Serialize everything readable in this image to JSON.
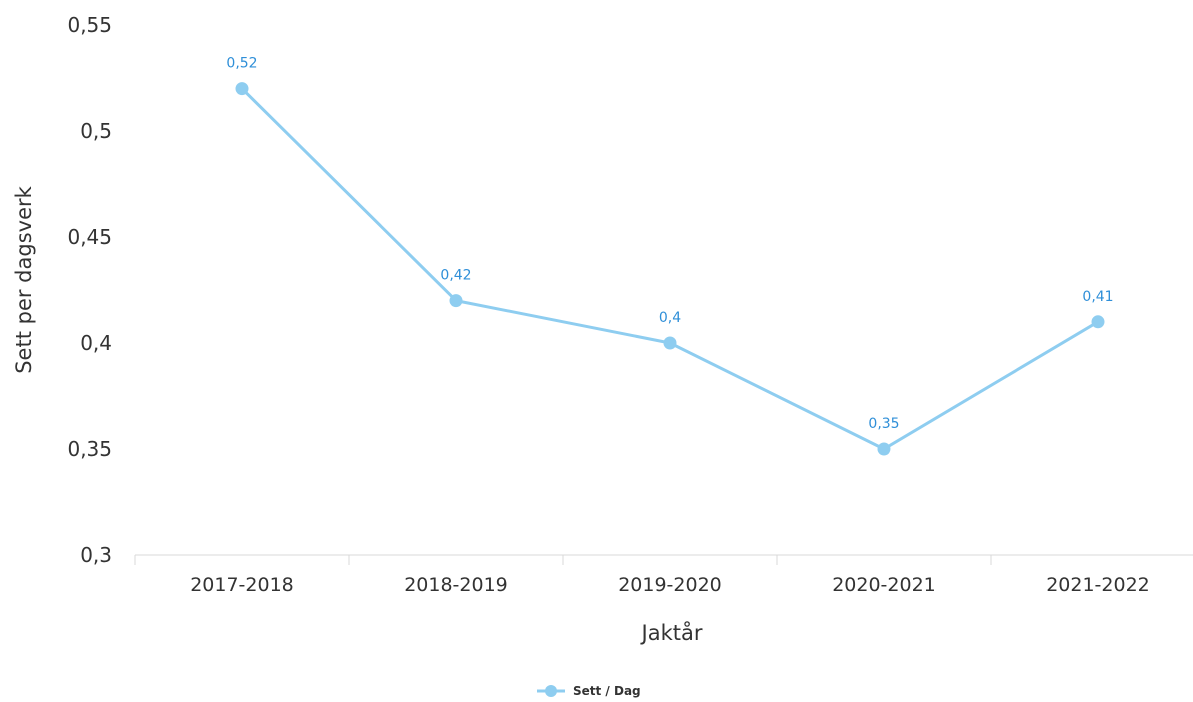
{
  "chart_data": {
    "type": "line",
    "categories": [
      "2017-2018",
      "2018-2019",
      "2019-2020",
      "2020-2021",
      "2021-2022"
    ],
    "series": [
      {
        "name": "Sett / Dag",
        "values": [
          0.52,
          0.42,
          0.4,
          0.35,
          0.41
        ],
        "value_labels": [
          "0,52",
          "0,42",
          "0,4",
          "0,35",
          "0,41"
        ],
        "color": "#8ecdf0"
      }
    ],
    "xlabel": "Jaktår",
    "ylabel": "Sett per dagsverk",
    "ylim": [
      0.3,
      0.55
    ],
    "yticks": [
      0.3,
      0.35,
      0.4,
      0.45,
      0.5,
      0.55
    ],
    "ytick_labels": [
      "0,3",
      "0,35",
      "0,4",
      "0,45",
      "0,5",
      "0,55"
    ],
    "grid": false,
    "legend": "bottom-center",
    "label_color": "#2f8fd8"
  }
}
